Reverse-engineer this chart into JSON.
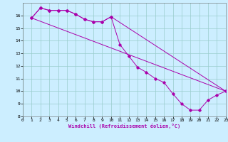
{
  "xlabel": "Windchill (Refroidissement éolien,°C)",
  "bg_color": "#cceeff",
  "grid_color": "#99cccc",
  "line_color": "#aa00aa",
  "line1_x": [
    1,
    2,
    3,
    4,
    5,
    6,
    7,
    8,
    9,
    10,
    11,
    12,
    13,
    14,
    15,
    16,
    17,
    18,
    19,
    20,
    21,
    22,
    23
  ],
  "line1_y": [
    15.8,
    16.6,
    16.4,
    16.4,
    16.4,
    16.1,
    15.7,
    15.5,
    15.5,
    15.9,
    13.7,
    12.8,
    11.9,
    11.5,
    11.0,
    10.7,
    9.8,
    9.0,
    8.5,
    8.5,
    9.3,
    9.7,
    10.0
  ],
  "line2_x": [
    1,
    2,
    3,
    4,
    5,
    6,
    7,
    8,
    9,
    10,
    23
  ],
  "line2_y": [
    15.8,
    16.6,
    16.4,
    16.4,
    16.4,
    16.1,
    15.7,
    15.5,
    15.5,
    15.9,
    10.0
  ],
  "line3_x": [
    1,
    23
  ],
  "line3_y": [
    15.8,
    10.0
  ],
  "xlim": [
    0,
    23
  ],
  "ylim": [
    8,
    17
  ],
  "xticks": [
    0,
    1,
    2,
    3,
    4,
    5,
    6,
    7,
    8,
    9,
    10,
    11,
    12,
    13,
    14,
    15,
    16,
    17,
    18,
    19,
    20,
    21,
    22,
    23
  ],
  "yticks": [
    8,
    9,
    10,
    11,
    12,
    13,
    14,
    15,
    16
  ],
  "tick_fontsize": 4.5,
  "xlabel_fontsize": 5.0,
  "lw": 0.7,
  "ms": 1.8
}
